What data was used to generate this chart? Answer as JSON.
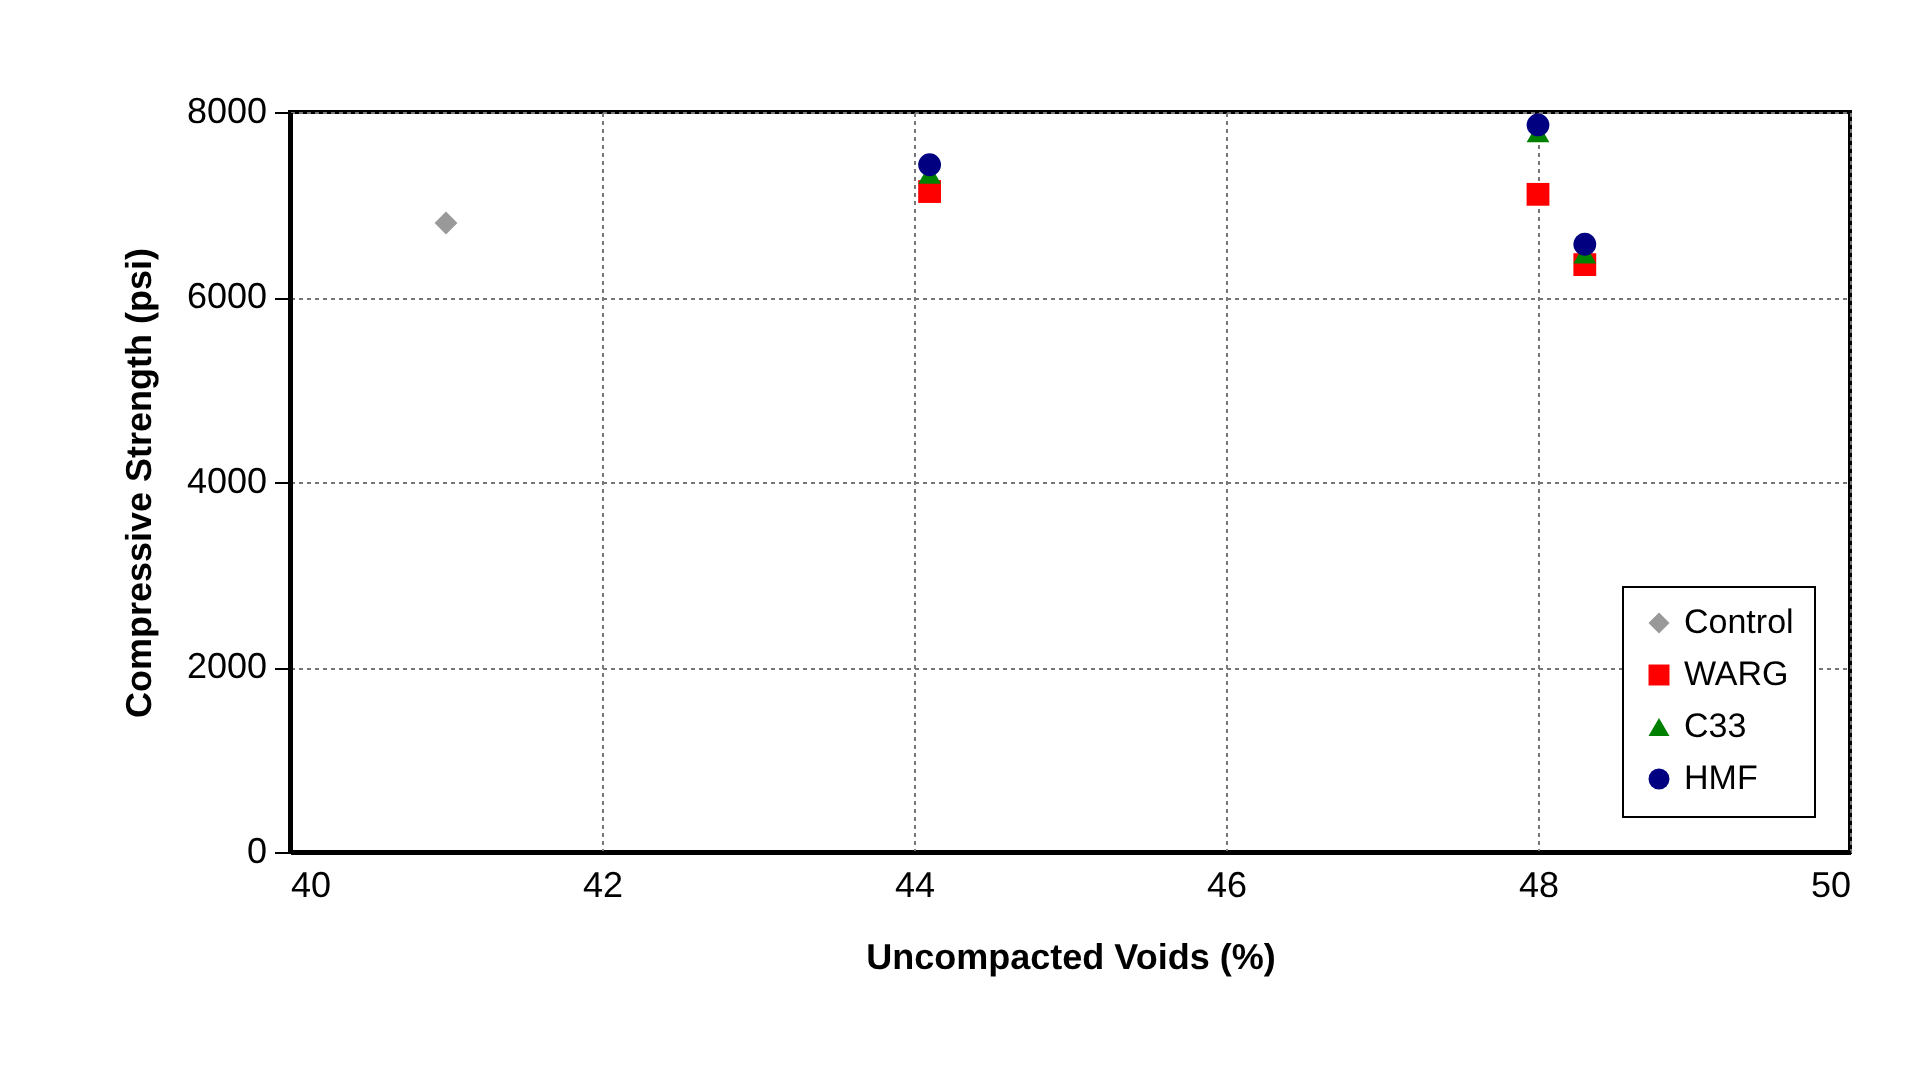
{
  "chart_data": {
    "type": "scatter",
    "xlabel": "Uncompacted Voids (%)",
    "ylabel": "Compressive Strength (psi)",
    "xlim": [
      40,
      50
    ],
    "xticks": [
      40,
      42,
      44,
      46,
      48,
      50
    ],
    "ylim": [
      0,
      8000
    ],
    "yticks": [
      0,
      2000,
      4000,
      6000,
      8000
    ],
    "grid": true,
    "legend": "bottom right",
    "series": [
      {
        "name": "Control",
        "color": "#999999",
        "marker": "diamond",
        "x": [
          41.0
        ],
        "values": [
          6800
        ]
      },
      {
        "name": "WARG",
        "color": "#ff0000",
        "marker": "square",
        "x": [
          44.1,
          48.0,
          48.3
        ],
        "values": [
          7140,
          7110,
          6350
        ]
      },
      {
        "name": "C33",
        "color": "#008000",
        "marker": "triangle",
        "x": [
          44.1,
          48.0,
          48.3
        ],
        "values": [
          7330,
          7780,
          6470
        ]
      },
      {
        "name": "HMF",
        "color": "#000080",
        "marker": "circle",
        "x": [
          44.1,
          48.0,
          48.3
        ],
        "values": [
          7430,
          7860,
          6570
        ]
      }
    ]
  }
}
